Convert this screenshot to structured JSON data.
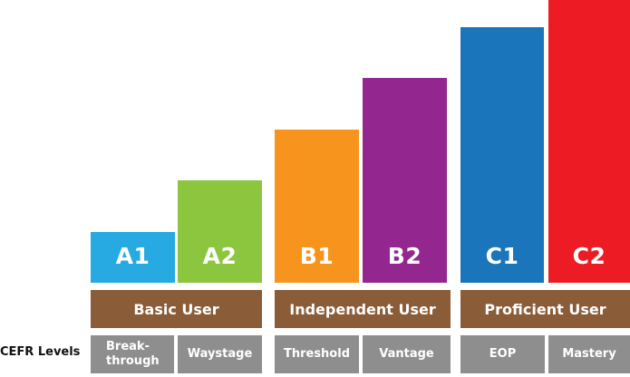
{
  "axis_label": "CEFR Levels",
  "levels": [
    {
      "label": "A1",
      "color": "#27a9e1",
      "level": 1
    },
    {
      "label": "A2",
      "color": "#8cc63f",
      "level": 2
    },
    {
      "label": "B1",
      "color": "#f7941d",
      "level": 3
    },
    {
      "label": "B2",
      "color": "#93278f",
      "level": 4
    },
    {
      "label": "C1",
      "color": "#1a75bb",
      "level": 5
    },
    {
      "label": "C2",
      "color": "#ed1c24",
      "level": 6
    }
  ],
  "groups": [
    {
      "label": "Basic User"
    },
    {
      "label": "Independent User"
    },
    {
      "label": "Proficient User"
    }
  ],
  "sublevels": [
    {
      "label": "Break-\nthrough"
    },
    {
      "label": "Waystage"
    },
    {
      "label": "Threshold"
    },
    {
      "label": "Vantage"
    },
    {
      "label": "EOP"
    },
    {
      "label": "Mastery"
    }
  ]
}
